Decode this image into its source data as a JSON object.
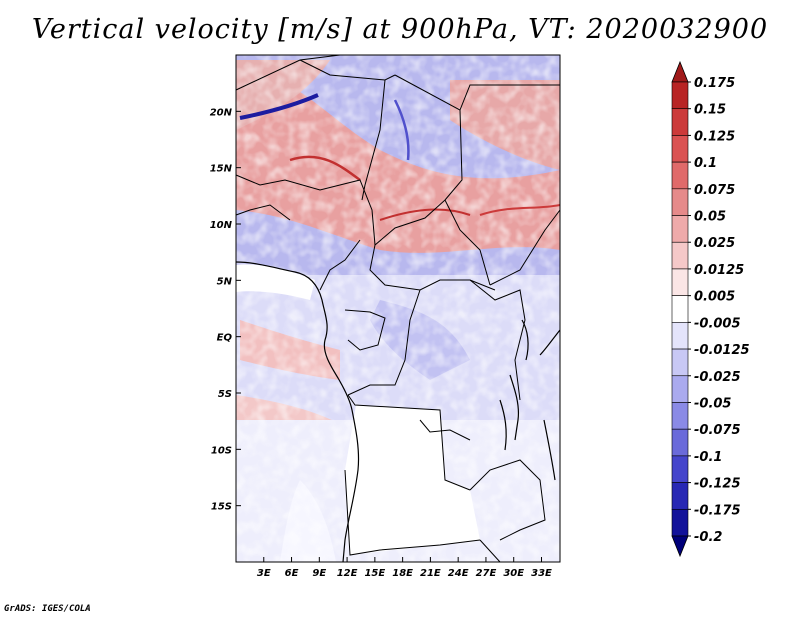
{
  "title": "Vertical velocity [m/s] at 900hPa, VT: 2020032900",
  "credit": "GrADS: IGES/COLA",
  "map": {
    "lon_range": [
      0,
      35
    ],
    "lat_range": [
      -20,
      25
    ],
    "lon_ticks": [
      {
        "value": 3,
        "label": "3E"
      },
      {
        "value": 6,
        "label": "6E"
      },
      {
        "value": 9,
        "label": "9E"
      },
      {
        "value": 12,
        "label": "12E"
      },
      {
        "value": 15,
        "label": "15E"
      },
      {
        "value": 18,
        "label": "18E"
      },
      {
        "value": 21,
        "label": "21E"
      },
      {
        "value": 24,
        "label": "24E"
      },
      {
        "value": 27,
        "label": "27E"
      },
      {
        "value": 30,
        "label": "30E"
      },
      {
        "value": 33,
        "label": "33E"
      }
    ],
    "lat_ticks": [
      {
        "value": 20,
        "label": "20N"
      },
      {
        "value": 15,
        "label": "15N"
      },
      {
        "value": 10,
        "label": "10N"
      },
      {
        "value": 5,
        "label": "5N"
      },
      {
        "value": 0,
        "label": "EQ"
      },
      {
        "value": -5,
        "label": "5S"
      },
      {
        "value": -10,
        "label": "10S"
      },
      {
        "value": -15,
        "label": "15S"
      }
    ]
  },
  "colorbar": {
    "levels": [
      "0.175",
      "0.15",
      "0.125",
      "0.1",
      "0.075",
      "0.05",
      "0.025",
      "0.0125",
      "0.005",
      "-0.005",
      "-0.0125",
      "-0.025",
      "-0.05",
      "-0.075",
      "-0.1",
      "-0.125",
      "-0.175",
      "-0.2"
    ],
    "colors": [
      "#a01a1a",
      "#b82424",
      "#cc3a3a",
      "#da5252",
      "#e06a6a",
      "#e68a8a",
      "#efaaaa",
      "#f5c8c8",
      "#fbe6e6",
      "#ffffff",
      "#e4e4fb",
      "#c8c8f5",
      "#aaaaef",
      "#8a8ae6",
      "#6a6ada",
      "#4545cc",
      "#2828b4",
      "#12129a",
      "#00007a"
    ]
  }
}
